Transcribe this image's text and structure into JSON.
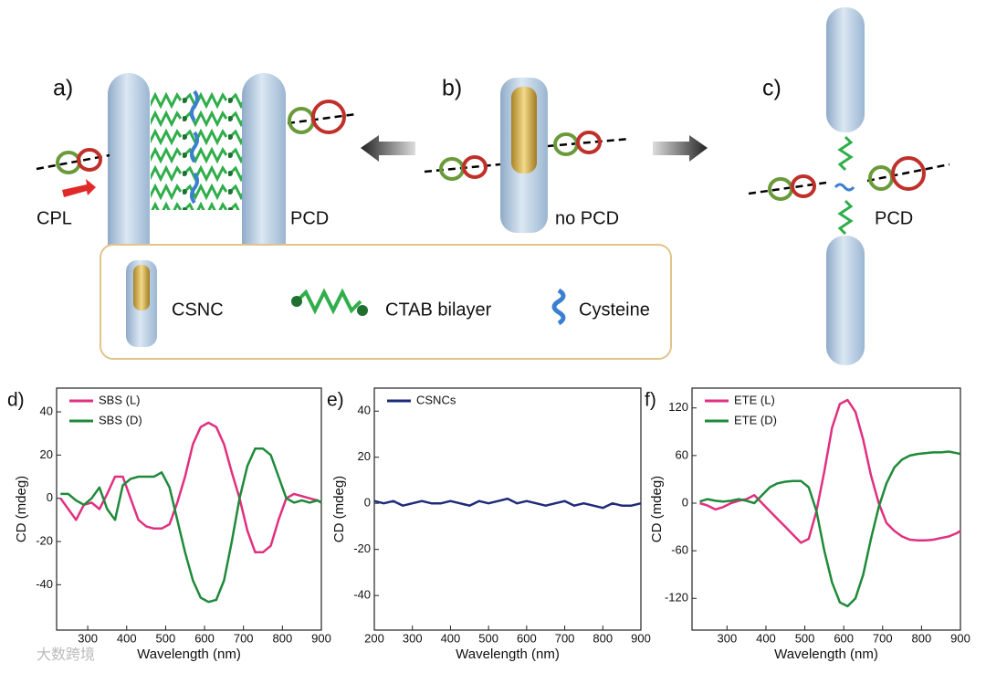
{
  "schematic": {
    "a": "a)",
    "b": "b)",
    "c": "c)",
    "cpl": "CPL",
    "pcd_a": "PCD",
    "no_pcd": "no PCD",
    "pcd_c": "PCD",
    "legend": {
      "csnc": "CSNC",
      "ctab": "CTAB bilayer",
      "cysteine": "Cysteine"
    }
  },
  "watermark": "大数跨境",
  "chart_data": [
    {
      "type": "line",
      "panel": "d)",
      "x_label": "Wavelength (nm)",
      "y_label": "CD (mdeg)",
      "xlim": [
        220,
        900
      ],
      "xticks": [
        300,
        400,
        500,
        600,
        700,
        800,
        900
      ],
      "ylim": [
        -61,
        51
      ],
      "yticks": [
        -40,
        -20,
        0,
        20,
        40
      ],
      "x": [
        230,
        250,
        270,
        290,
        310,
        330,
        350,
        370,
        390,
        410,
        430,
        450,
        470,
        490,
        510,
        530,
        550,
        570,
        590,
        610,
        630,
        650,
        670,
        690,
        710,
        730,
        750,
        770,
        790,
        810,
        830,
        850,
        870,
        890,
        900
      ],
      "series": [
        {
          "name": "SBS (L)",
          "color": "#e0307f",
          "values": [
            0,
            -5,
            -10,
            -3,
            -2,
            -5,
            2,
            10,
            10,
            0,
            -10,
            -13,
            -14,
            -14,
            -12,
            -2,
            10,
            25,
            33,
            35,
            33,
            25,
            12,
            0,
            -15,
            -25,
            -25,
            -22,
            -10,
            0,
            2,
            1,
            0,
            -1,
            -2
          ]
        },
        {
          "name": "SBS (D)",
          "color": "#1f8a3a",
          "values": [
            2,
            2,
            -1,
            -3,
            0,
            5,
            -5,
            -10,
            6,
            9,
            10,
            10,
            10,
            12,
            5,
            -10,
            -25,
            -38,
            -46,
            -48,
            -47,
            -38,
            -20,
            0,
            15,
            23,
            23,
            20,
            10,
            0,
            -2,
            -1,
            -2,
            -1,
            -2
          ]
        }
      ]
    },
    {
      "type": "line",
      "panel": "e)",
      "x_label": "Wavelength (nm)",
      "y_label": "CD (mdeg)",
      "xlim": [
        200,
        900
      ],
      "xticks": [
        200,
        300,
        400,
        500,
        600,
        700,
        800,
        900
      ],
      "ylim": [
        -55,
        50
      ],
      "yticks": [
        -40,
        -20,
        0,
        20,
        40
      ],
      "x": [
        200,
        225,
        250,
        275,
        300,
        325,
        350,
        375,
        400,
        425,
        450,
        475,
        500,
        525,
        550,
        575,
        600,
        625,
        650,
        675,
        700,
        725,
        750,
        775,
        800,
        825,
        850,
        875,
        900
      ],
      "series": [
        {
          "name": "CSNCs",
          "color": "#1f2a7a",
          "values": [
            1,
            0,
            1,
            -1,
            0,
            1,
            0,
            0,
            1,
            0,
            -1,
            1,
            0,
            1,
            2,
            0,
            1,
            0,
            -1,
            0,
            1,
            -1,
            0,
            -1,
            -2,
            0,
            -1,
            -1,
            0
          ]
        }
      ]
    },
    {
      "type": "line",
      "panel": "f)",
      "x_label": "Wavelength (nm)",
      "y_label": "CD (mdeg)",
      "xlim": [
        210,
        900
      ],
      "xticks": [
        300,
        400,
        500,
        600,
        700,
        800,
        900
      ],
      "ylim": [
        -160,
        145
      ],
      "yticks": [
        -120,
        -60,
        0,
        60,
        120
      ],
      "x": [
        230,
        250,
        270,
        290,
        310,
        330,
        350,
        370,
        390,
        410,
        430,
        450,
        470,
        490,
        510,
        530,
        550,
        570,
        590,
        610,
        630,
        650,
        670,
        690,
        710,
        730,
        750,
        770,
        790,
        810,
        830,
        850,
        870,
        890,
        900
      ],
      "series": [
        {
          "name": "ETE (L)",
          "color": "#e0307f",
          "values": [
            0,
            -3,
            -8,
            -5,
            0,
            3,
            5,
            10,
            0,
            -10,
            -20,
            -30,
            -40,
            -50,
            -45,
            -10,
            40,
            95,
            125,
            130,
            115,
            80,
            35,
            0,
            -25,
            -35,
            -42,
            -46,
            -47,
            -47,
            -46,
            -44,
            -42,
            -38,
            -35
          ]
        },
        {
          "name": "ETE (D)",
          "color": "#1f8a3a",
          "values": [
            2,
            5,
            3,
            2,
            3,
            5,
            3,
            0,
            10,
            20,
            25,
            27,
            28,
            28,
            20,
            -10,
            -60,
            -100,
            -125,
            -130,
            -120,
            -90,
            -45,
            -5,
            25,
            45,
            55,
            60,
            62,
            63,
            64,
            64,
            65,
            63,
            62
          ]
        }
      ]
    }
  ]
}
